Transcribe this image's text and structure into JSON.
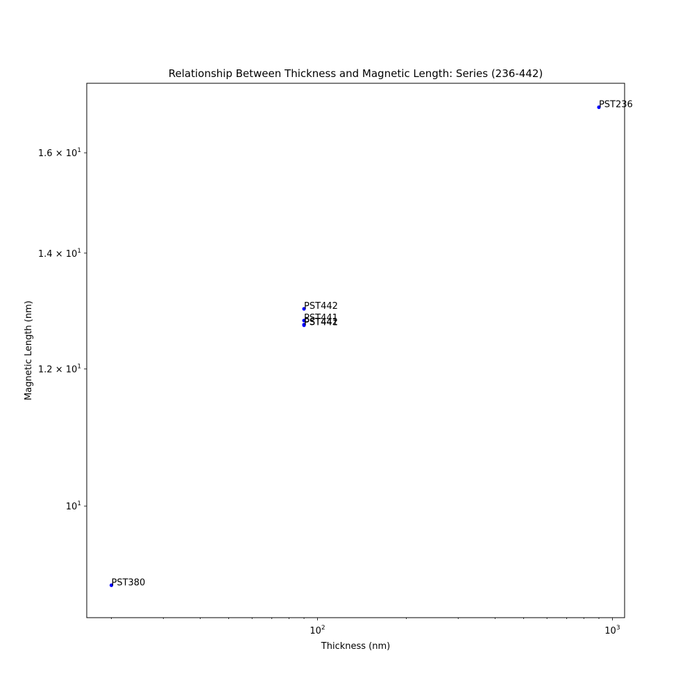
{
  "chart_data": {
    "type": "scatter",
    "title": "Relationship Between Thickness and Magnetic Length: Series (236-442)",
    "xlabel": "Thickness (nm)",
    "ylabel": "Magnetic Length (nm)",
    "xscale": "log",
    "yscale": "log",
    "xlim": [
      16.5,
      1100
    ],
    "ylim": [
      8.62,
      17.55
    ],
    "grid": false,
    "marker_color": "#0000ff",
    "x_ticks": [
      {
        "value": 100,
        "label": "10",
        "exp": "2"
      },
      {
        "value": 1000,
        "label": "10",
        "exp": "3"
      }
    ],
    "y_ticks": [
      {
        "value": 10,
        "label": "10",
        "exp": "1"
      },
      {
        "value": 12,
        "label": "1.2 × 10",
        "exp": "1"
      },
      {
        "value": 14,
        "label": "1.4 × 10",
        "exp": "1"
      },
      {
        "value": 16,
        "label": "1.6 × 10",
        "exp": "1"
      }
    ],
    "points": [
      {
        "label": "PST236",
        "x": 900,
        "y": 17.0
      },
      {
        "label": "PST442",
        "x": 90,
        "y": 13.0
      },
      {
        "label": "PST441",
        "x": 90,
        "y": 12.8
      },
      {
        "label": "PST442",
        "x": 90,
        "y": 12.73
      },
      {
        "label": "PST441",
        "x": 90,
        "y": 12.72
      },
      {
        "label": "PST380",
        "x": 20,
        "y": 9.0
      }
    ]
  }
}
